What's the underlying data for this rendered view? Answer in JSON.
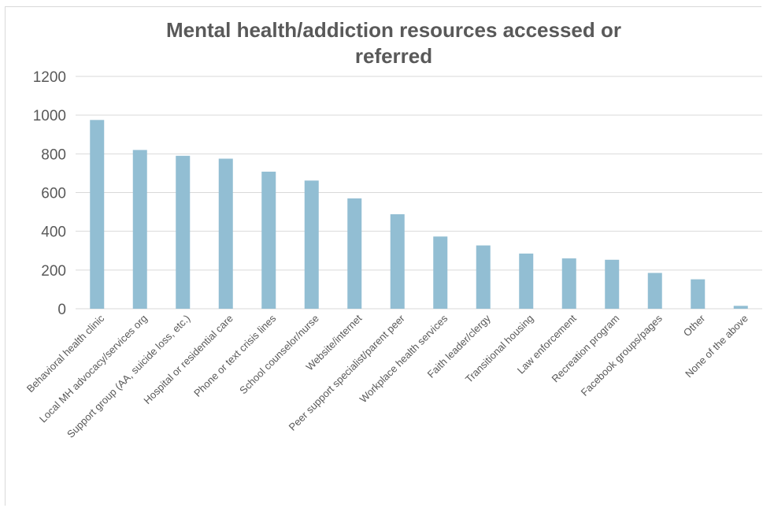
{
  "chart_data": {
    "type": "bar",
    "title": "Mental health/addiction resources accessed or referred",
    "categories": [
      "Behavioral health clinic",
      "Local MH advocacy/services org",
      "Support group (AA, suicide loss, etc.)",
      "Hospital or residential care",
      "Phone or text crisis lines",
      "School counselor/nurse",
      "Website/internet",
      "Peer support specialist/parent peer",
      "Workplace health services",
      "Faith leader/clergy",
      "Transitional housing",
      "Law enforcement",
      "Recreation program",
      "Facebook groups/pages",
      "Other",
      "None of the above"
    ],
    "values": [
      975,
      820,
      790,
      775,
      708,
      662,
      570,
      488,
      373,
      327,
      285,
      260,
      253,
      185,
      152,
      15
    ],
    "ylim": [
      0,
      1200
    ],
    "yticks": [
      0,
      200,
      400,
      600,
      800,
      1000,
      1200
    ],
    "grid": true,
    "legend": "none",
    "bar_color": "#92bed3",
    "grid_color": "#d9d9d9",
    "text_color": "#595959"
  }
}
